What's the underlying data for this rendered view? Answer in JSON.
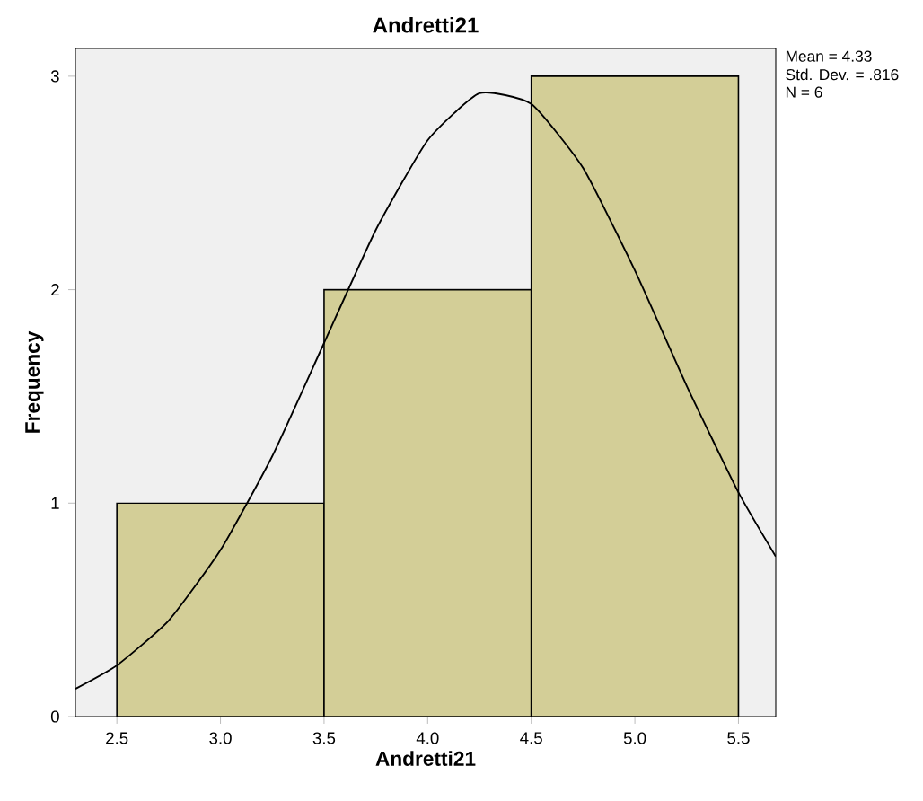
{
  "chart_data": {
    "type": "histogram",
    "title": "Andretti21",
    "xlabel": "Andretti21",
    "ylabel": "Frequency",
    "annotations": [
      "Mean = 4.33",
      "Std. Dev. = .816",
      "N = 6"
    ],
    "xlim": [
      2.3,
      5.68
    ],
    "ylim": [
      0,
      3.13
    ],
    "xticks": [
      2.5,
      {
        "value": 3.0,
        "label": "3.0"
      },
      3.5,
      {
        "value": 4.0,
        "label": "4.0"
      },
      4.5,
      {
        "value": 5.0,
        "label": "5.0"
      },
      5.5
    ],
    "yticks": [
      0,
      1,
      2,
      3
    ],
    "series": [
      {
        "color": "#d3ce97",
        "bins": [
          2.5,
          3.5,
          4.5,
          5.5
        ],
        "values": [
          1,
          2,
          3
        ]
      },
      {
        "type": "line",
        "color": "#000000",
        "x": [
          2.3,
          2.5,
          2.75,
          3.0,
          3.25,
          3.5,
          3.75,
          4.0,
          4.25,
          4.5,
          4.75,
          5.0,
          5.25,
          5.5,
          5.68
        ],
        "values": [
          0.13,
          0.24,
          0.45,
          0.78,
          1.22,
          1.75,
          2.28,
          2.7,
          2.92,
          2.87,
          2.57,
          2.09,
          1.55,
          1.05,
          0.75
        ]
      }
    ]
  }
}
